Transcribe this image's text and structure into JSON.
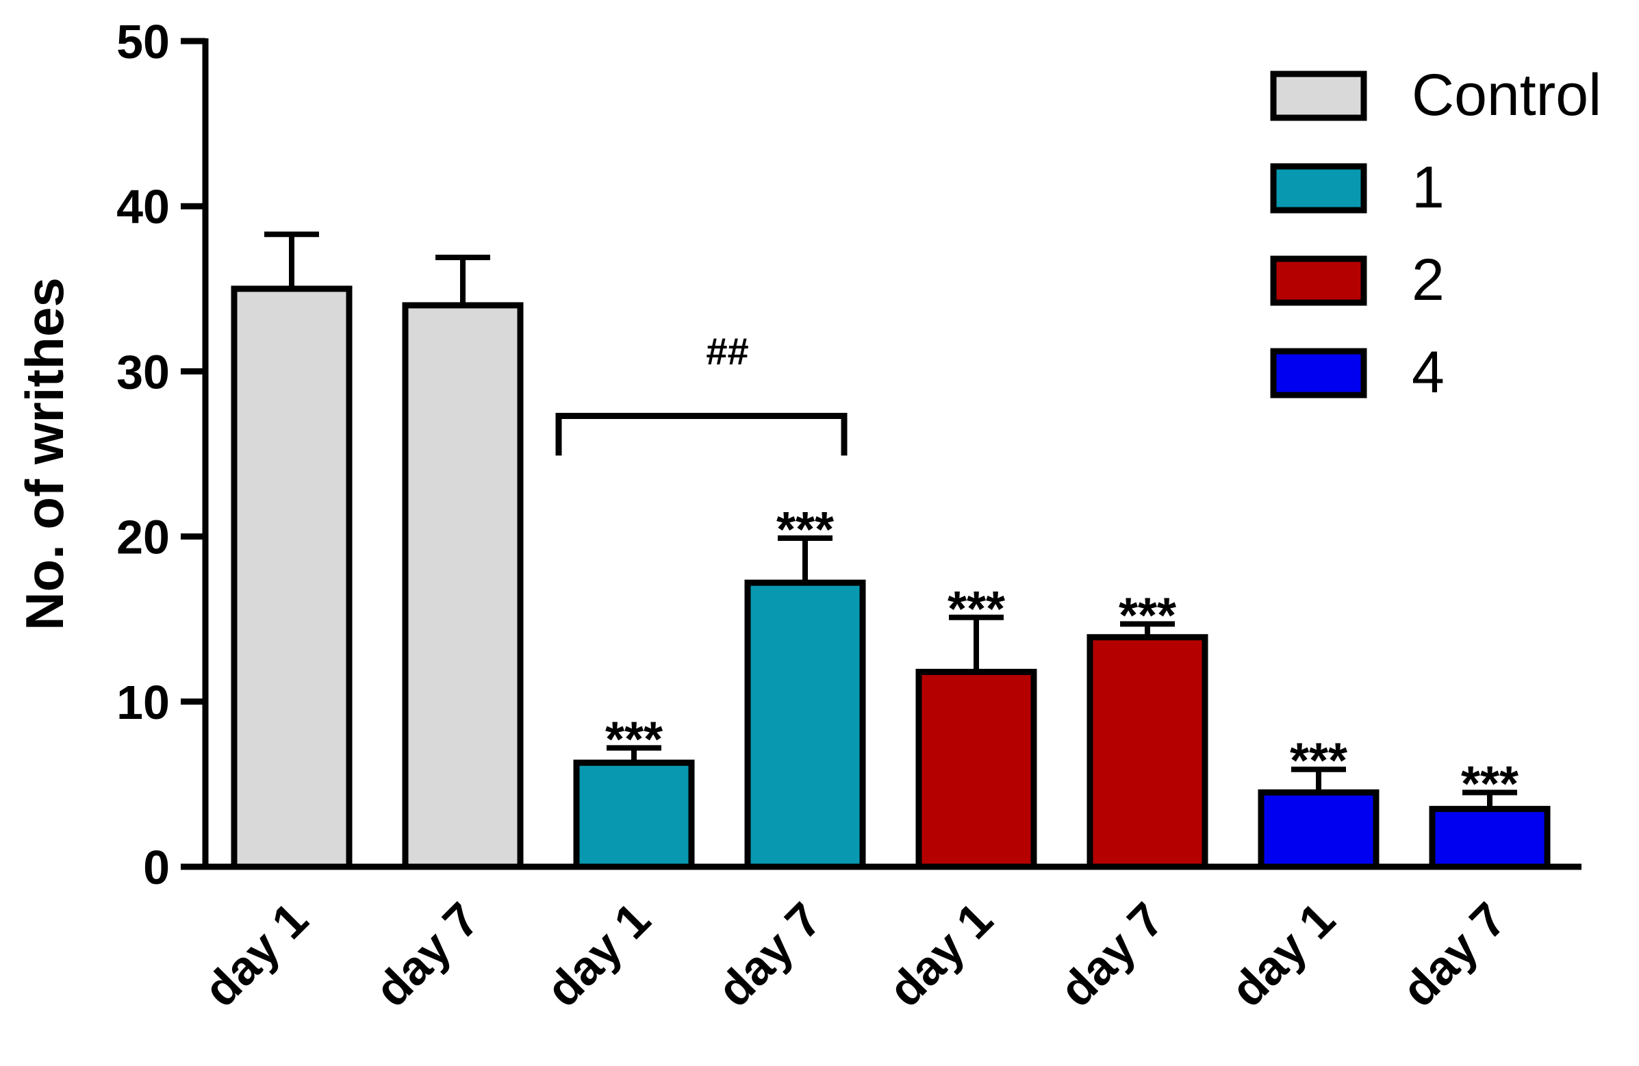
{
  "chart_data": {
    "type": "bar",
    "title": "",
    "xlabel": "",
    "ylabel": "No. of writhes",
    "ylim": [
      0,
      50
    ],
    "yticks": [
      "0",
      "10",
      "20",
      "30",
      "40",
      "50"
    ],
    "grid": false,
    "legend_position": "top-right",
    "categories": [
      "day 1",
      "day 7",
      "day 1",
      "day 7",
      "day 1",
      "day 7",
      "day 1",
      "day 7"
    ],
    "series": [
      {
        "name": "Control",
        "color": "#d9d9d9",
        "bar_indices": [
          0,
          1
        ]
      },
      {
        "name": "1",
        "color": "#0898b0",
        "bar_indices": [
          2,
          3
        ]
      },
      {
        "name": "2",
        "color": "#b50000",
        "bar_indices": [
          4,
          5
        ]
      },
      {
        "name": "4",
        "color": "#0000f0",
        "bar_indices": [
          6,
          7
        ]
      }
    ],
    "values": [
      35.0,
      34.0,
      6.3,
      17.2,
      11.8,
      13.9,
      4.5,
      3.5
    ],
    "errors": [
      3.3,
      2.9,
      0.9,
      2.7,
      3.3,
      0.8,
      1.4,
      1.0
    ],
    "annotations": [
      "",
      "",
      "***",
      "***",
      "***",
      "***",
      "***",
      "***"
    ],
    "bracket": {
      "label": "##",
      "from_bar": 2,
      "to_bar": 3,
      "y_value": 27.3,
      "leg_bottom_value": 24.9
    }
  }
}
